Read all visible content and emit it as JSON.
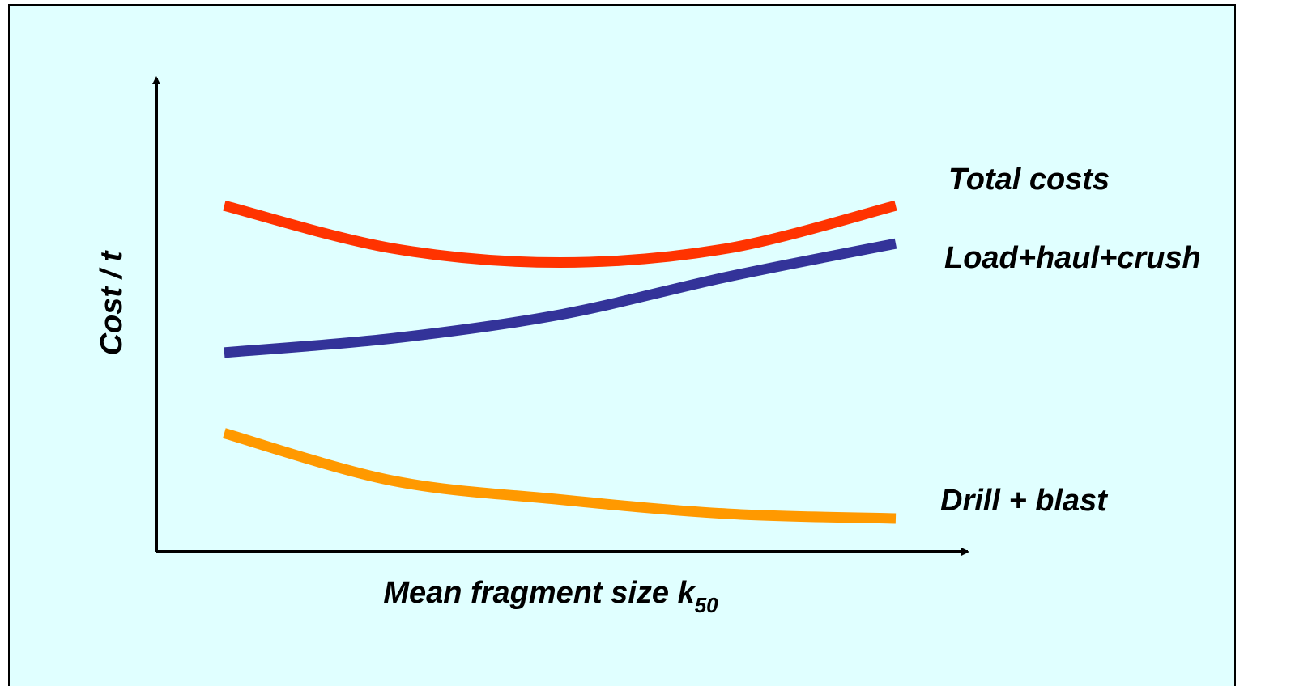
{
  "chart_data": {
    "type": "line",
    "title": "",
    "xlabel": "Mean fragment size k",
    "xlabel_subscript": "50",
    "ylabel": "Cost / t",
    "x": [
      0,
      0.25,
      0.5,
      0.75,
      1
    ],
    "series": [
      {
        "name": "Total costs",
        "color": "#ff3300",
        "values": [
          0.73,
          0.64,
          0.61,
          0.64,
          0.73
        ]
      },
      {
        "name": "Load+haul+crush",
        "color": "#333399",
        "values": [
          0.42,
          0.45,
          0.5,
          0.58,
          0.65
        ]
      },
      {
        "name": "Drill + blast",
        "color": "#ff9900",
        "values": [
          0.25,
          0.15,
          0.11,
          0.08,
          0.07
        ]
      }
    ],
    "xlim": [
      0,
      1
    ],
    "ylim": [
      0,
      1
    ],
    "grid": false,
    "ticks": false,
    "background": "#e0ffff",
    "frame_color": "#000000"
  }
}
